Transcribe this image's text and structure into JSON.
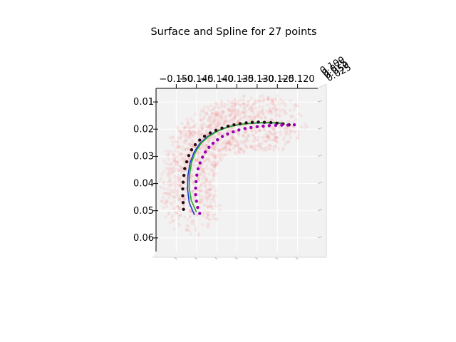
{
  "chart_data": {
    "type": "scatter",
    "projection": "3d",
    "title": "Surface and Spline for 27 points",
    "xlabel": "",
    "ylabel": "",
    "zlabel": "",
    "xlim": [
      -0.155,
      -0.115
    ],
    "ylim": [
      0.005,
      0.065
    ],
    "xticks": [
      "−0.150",
      "−0.145",
      "−0.140",
      "−0.135",
      "−0.130",
      "−0.125",
      "−0.120"
    ],
    "yticks": [
      "0.01",
      "0.02",
      "0.03",
      "0.04",
      "0.05",
      "0.06"
    ],
    "zticks": [
      "0.100",
      "0.075",
      "0.050",
      "0.025"
    ],
    "grid": true,
    "colors": {
      "surface": "#ff3b3b",
      "points_dark": "#2a0a12",
      "points_purple": "#9a00b0",
      "points_red": "#e0103a",
      "spline_blue": "#1f3bd6",
      "spline_green": "#22aa22"
    },
    "series": [
      {
        "kind": "points",
        "color": "points_dark",
        "x": [
          -0.1482,
          -0.1483,
          -0.1484,
          -0.1484,
          -0.1483,
          -0.1481,
          -0.1479,
          -0.1474,
          -0.1469,
          -0.1462,
          -0.1453,
          -0.1442,
          -0.143,
          -0.1416,
          -0.1402,
          -0.1387,
          -0.1372,
          -0.1357,
          -0.1342,
          -0.1327,
          -0.1312,
          -0.1297,
          -0.1282,
          -0.1266,
          -0.1251,
          -0.1236,
          -0.1221
        ],
        "y": [
          0.0495,
          0.047,
          0.0445,
          0.042,
          0.0395,
          0.037,
          0.0345,
          0.032,
          0.0297,
          0.0276,
          0.0257,
          0.024,
          0.0226,
          0.0214,
          0.0204,
          0.0196,
          0.0189,
          0.0184,
          0.018,
          0.0177,
          0.0175,
          0.0174,
          0.0175,
          0.0176,
          0.0178,
          0.0181,
          0.0184
        ]
      },
      {
        "kind": "points",
        "color": "points_purple",
        "x": [
          -0.1442,
          -0.1447,
          -0.145,
          -0.1452,
          -0.1452,
          -0.1451,
          -0.1449,
          -0.1446,
          -0.1441,
          -0.1435,
          -0.1428,
          -0.1419,
          -0.1409,
          -0.1398,
          -0.1386,
          -0.1373,
          -0.1359,
          -0.1345,
          -0.133,
          -0.1315,
          -0.13,
          -0.1285,
          -0.127,
          -0.1254,
          -0.1239,
          -0.1224,
          -0.1208
        ],
        "y": [
          0.051,
          0.0488,
          0.0465,
          0.0441,
          0.0417,
          0.0393,
          0.0369,
          0.0346,
          0.0324,
          0.0303,
          0.0284,
          0.0267,
          0.0252,
          0.0239,
          0.0227,
          0.0218,
          0.021,
          0.0203,
          0.0198,
          0.0194,
          0.0191,
          0.0189,
          0.0187,
          0.0186,
          0.0185,
          0.0185,
          0.0184
        ]
      },
      {
        "kind": "spline",
        "color": "spline_blue",
        "x": [
          -0.1455,
          -0.1468,
          -0.1472,
          -0.1471,
          -0.1466,
          -0.1456,
          -0.1442,
          -0.1423,
          -0.14,
          -0.1375,
          -0.1348,
          -0.132,
          -0.1292,
          -0.1262,
          -0.1236
        ],
        "y": [
          0.0515,
          0.047,
          0.042,
          0.037,
          0.0325,
          0.0285,
          0.0253,
          0.0228,
          0.0207,
          0.0193,
          0.0184,
          0.0179,
          0.0177,
          0.0177,
          0.0179
        ]
      },
      {
        "kind": "spline",
        "color": "spline_green",
        "x": [
          -0.145,
          -0.1463,
          -0.1468,
          -0.1467,
          -0.1462,
          -0.1452,
          -0.1438,
          -0.1419,
          -0.1396,
          -0.1371,
          -0.1344,
          -0.1316,
          -0.1288,
          -0.1258,
          -0.1232
        ],
        "y": [
          0.0505,
          0.0462,
          0.0415,
          0.0367,
          0.0322,
          0.0283,
          0.0251,
          0.0226,
          0.0206,
          0.0192,
          0.0183,
          0.0178,
          0.0176,
          0.0176,
          0.0178
        ]
      }
    ]
  }
}
